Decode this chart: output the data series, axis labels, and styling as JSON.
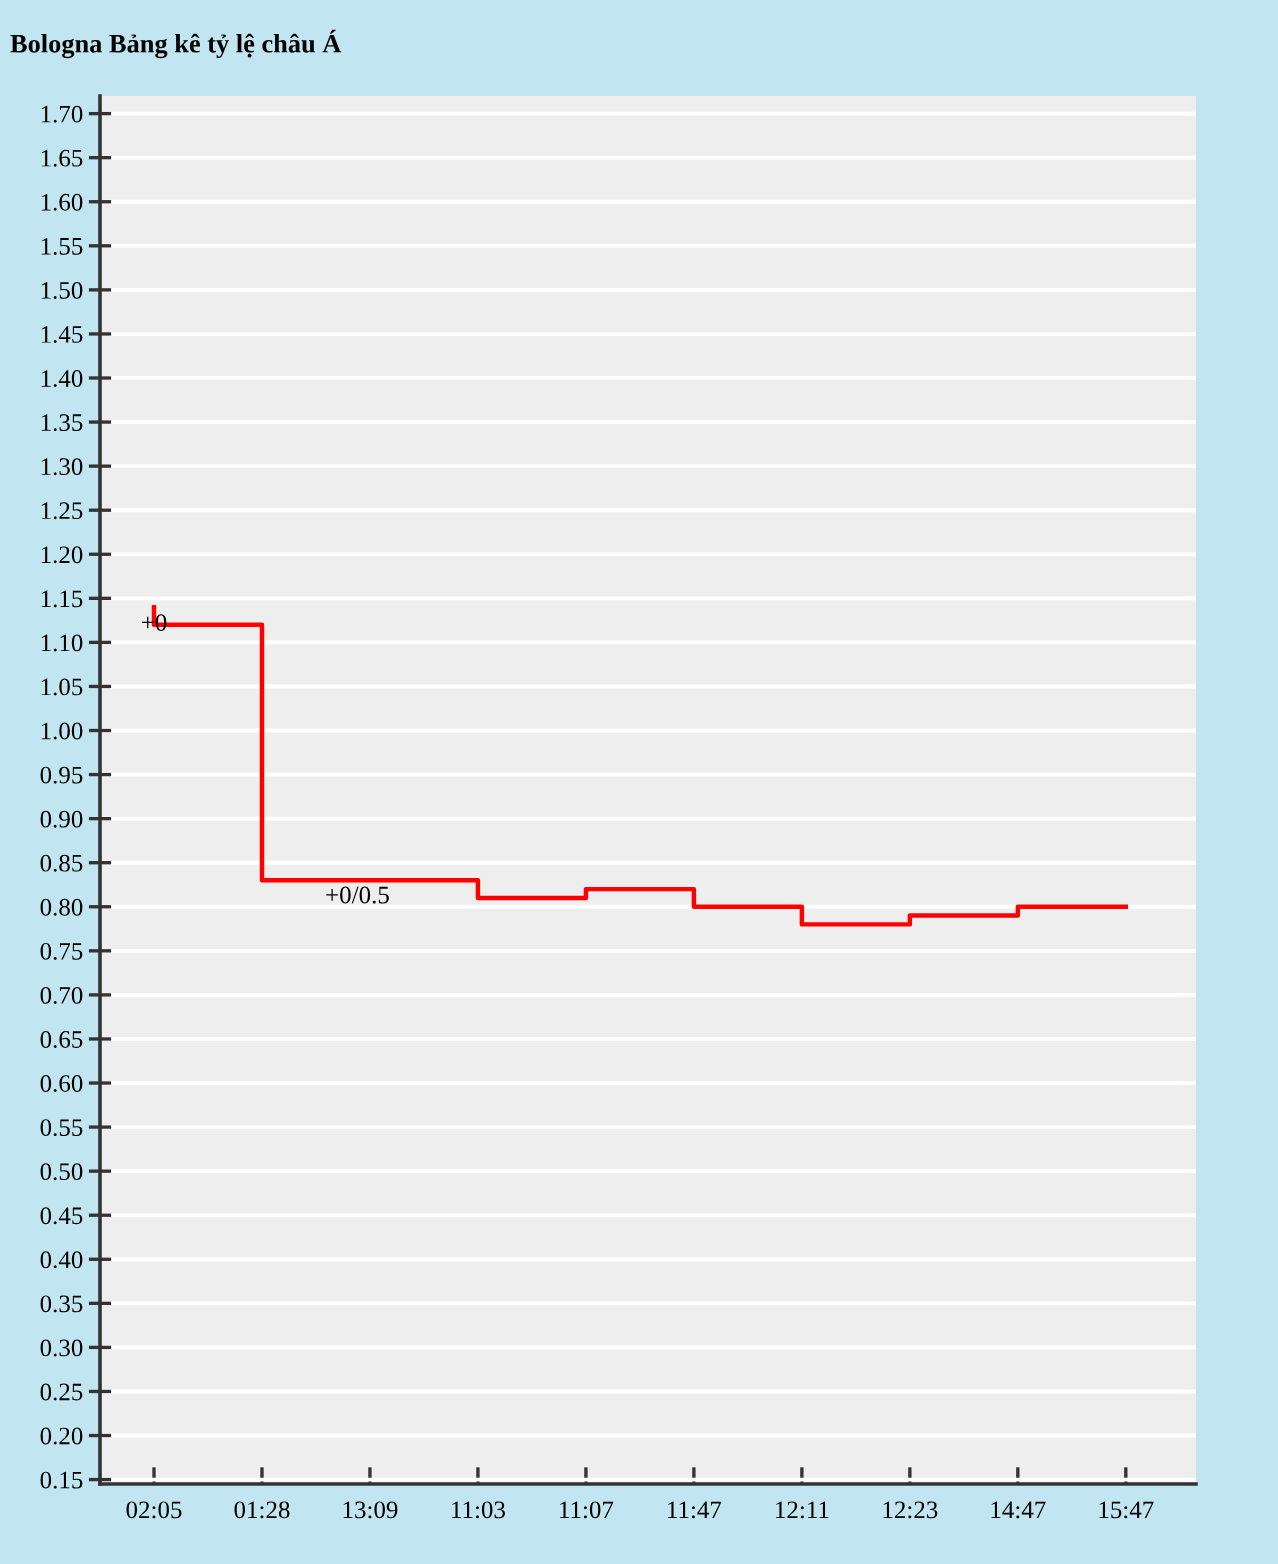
{
  "chart_data": {
    "type": "step",
    "title": "Bologna Bảng kê tỷ lệ châu Á",
    "categories": [
      "02:05",
      "01:28",
      "13:09",
      "11:03",
      "11:07",
      "11:47",
      "12:11",
      "12:23",
      "14:47",
      "15:47"
    ],
    "values": [
      1.14,
      1.12,
      0.83,
      0.83,
      0.81,
      0.82,
      0.8,
      0.78,
      0.79,
      0.8
    ],
    "color": "#ff0000",
    "ylim": [
      0.145,
      1.72
    ],
    "yticks": [
      0.15,
      {
        "value": 0.2,
        "label": "0.20"
      },
      0.25,
      {
        "value": 0.3,
        "label": "0.30"
      },
      0.35,
      {
        "value": 0.4,
        "label": "0.40"
      },
      0.45,
      {
        "value": 0.5,
        "label": "0.50"
      },
      0.55,
      {
        "value": 0.6,
        "label": "0.60"
      },
      0.65,
      {
        "value": 0.7,
        "label": "0.70"
      },
      0.75,
      {
        "value": 0.8,
        "label": "0.80"
      },
      0.85,
      {
        "value": 0.9,
        "label": "0.90"
      },
      0.95,
      {
        "value": 1,
        "label": "1.00"
      },
      1.05,
      {
        "value": 1.1,
        "label": "1.10"
      },
      1.15,
      {
        "value": 1.2,
        "label": "1.20"
      },
      1.25,
      {
        "value": 1.3,
        "label": "1.30"
      },
      1.35,
      {
        "value": 1.4,
        "label": "1.40"
      },
      1.45,
      {
        "value": 1.5,
        "label": "1.50"
      },
      1.55,
      {
        "value": 1.6,
        "label": "1.60"
      },
      1.65,
      {
        "value": 1.7,
        "label": "1.70"
      }
    ],
    "grid": "y",
    "annotations": [
      {
        "text": "+0",
        "x": "02:05",
        "y": 1.12
      },
      {
        "text": "+0/0.5",
        "x": "13:09",
        "y": 0.83
      }
    ]
  }
}
